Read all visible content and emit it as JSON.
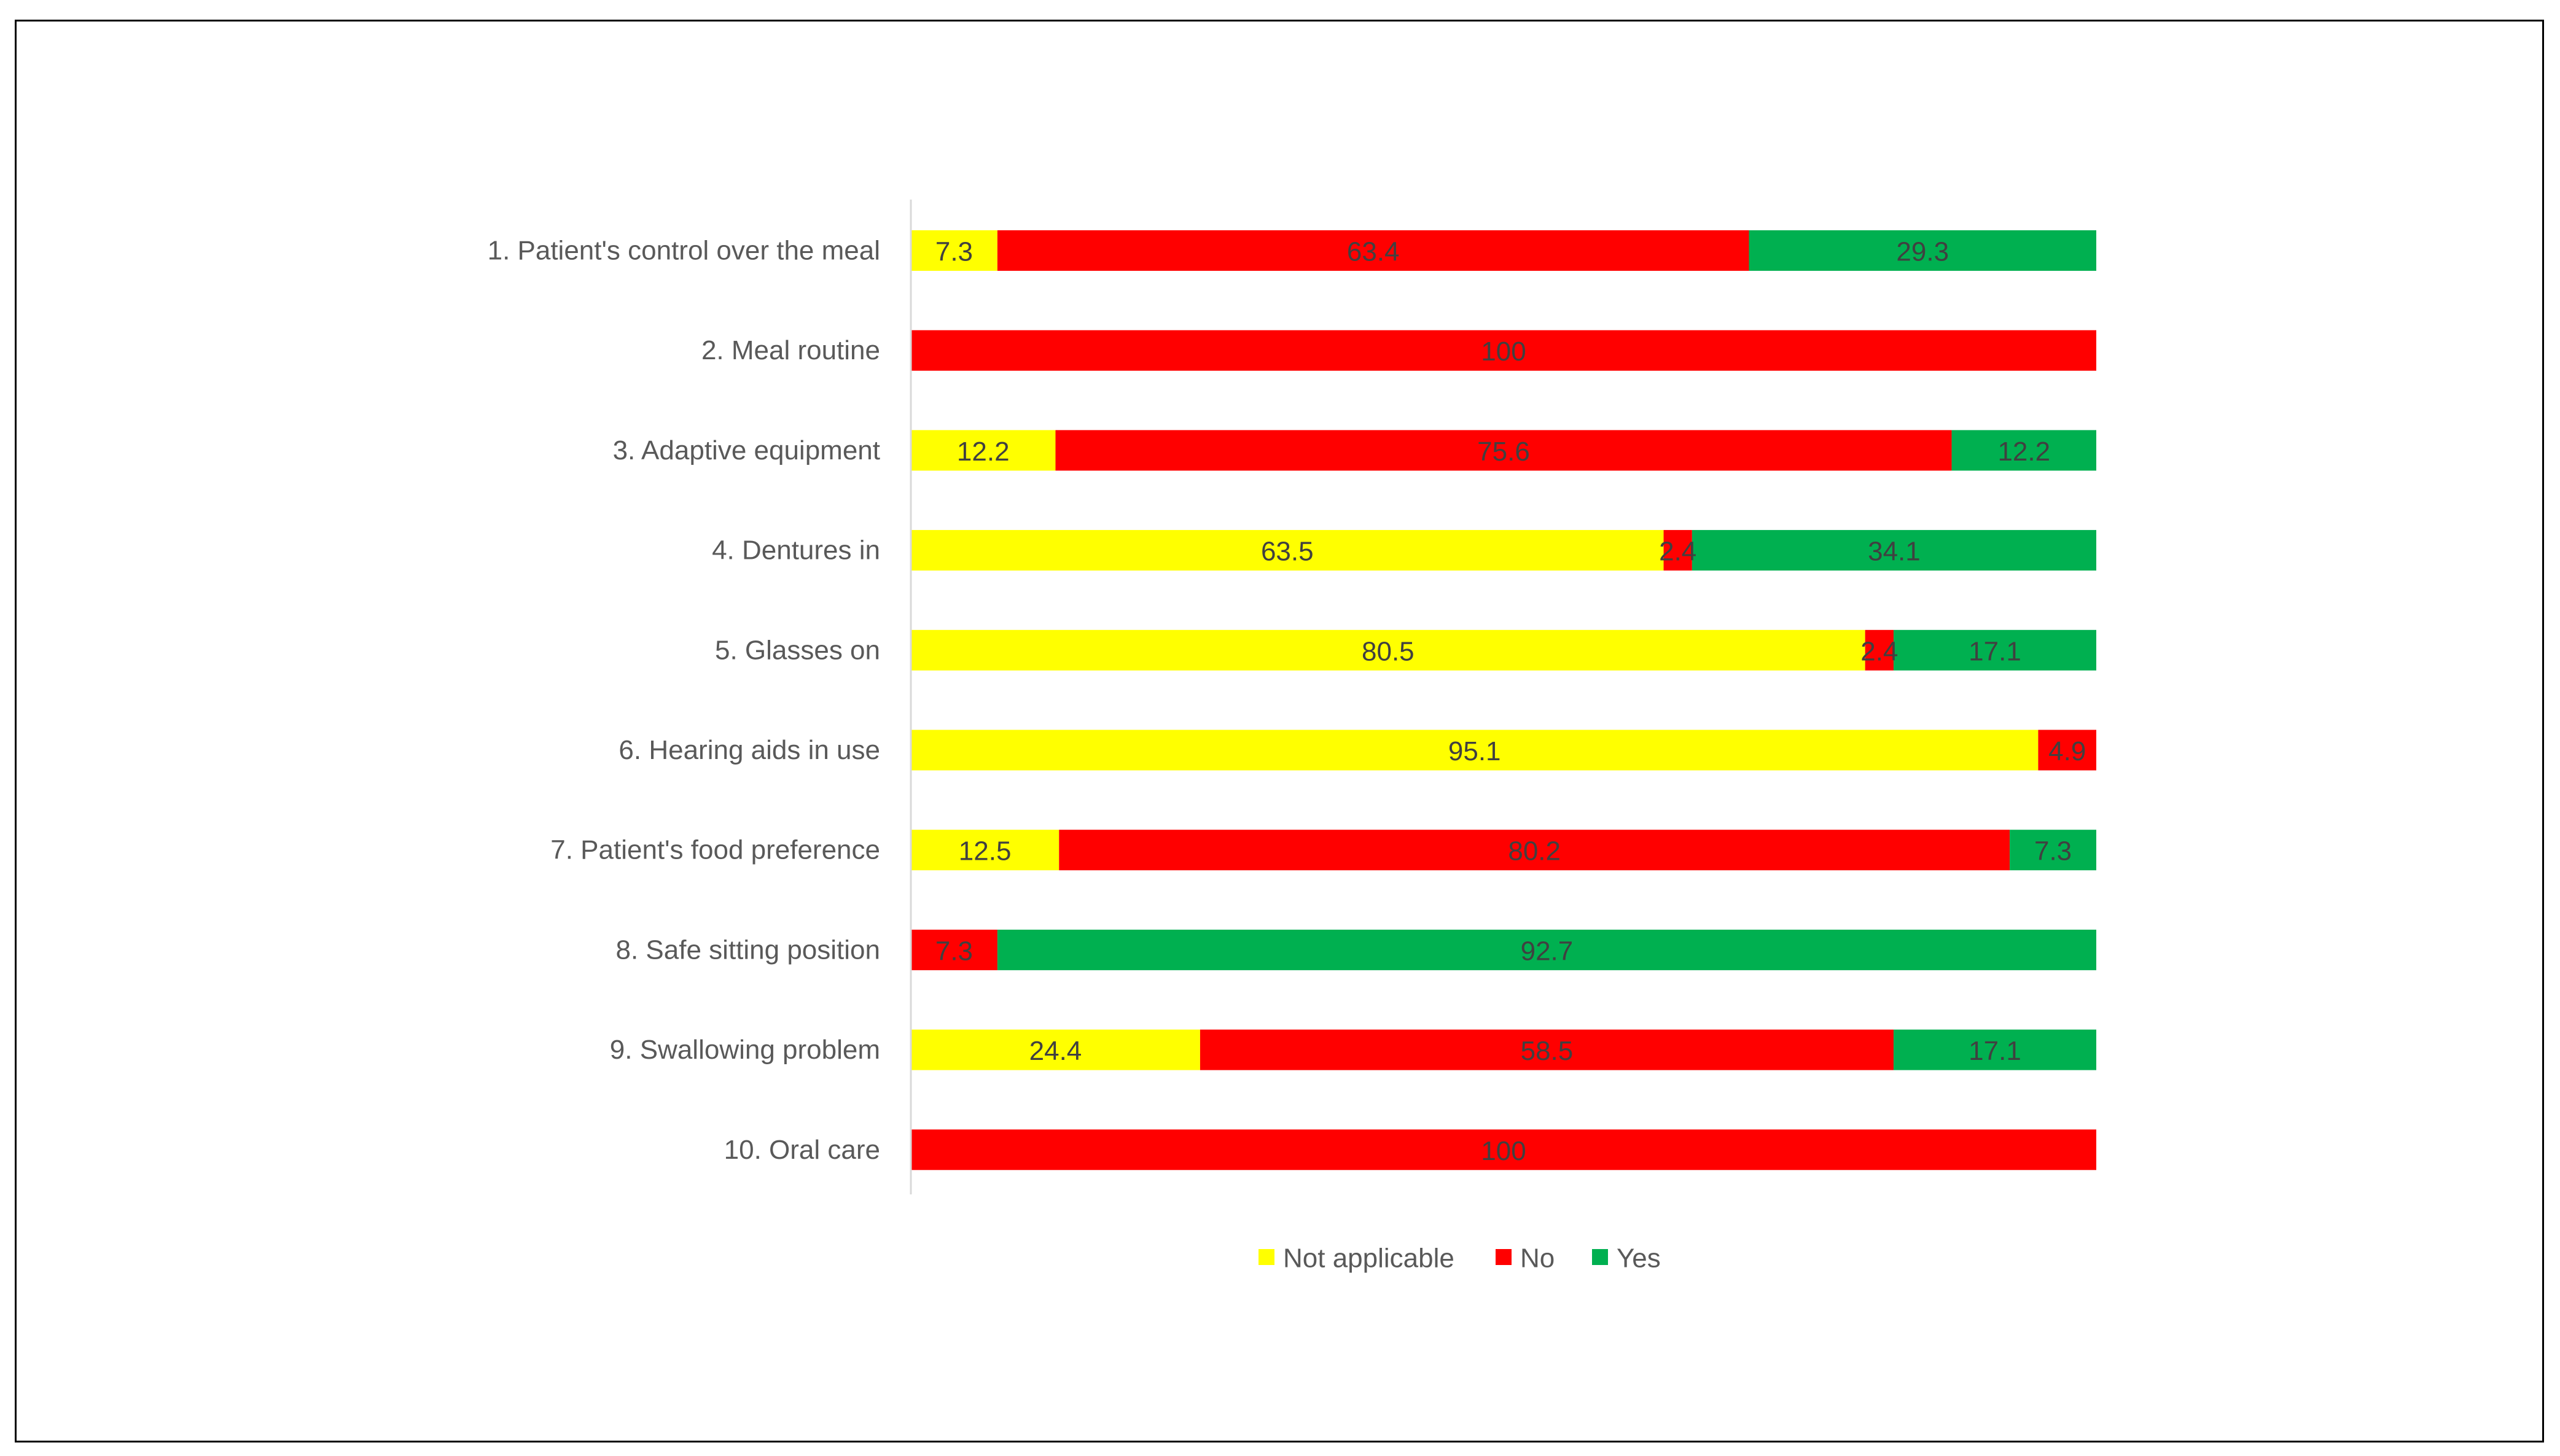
{
  "chart_data": {
    "type": "bar",
    "orientation": "horizontal",
    "stacked": true,
    "categories": [
      "1. Patient's control over the meal",
      "2. Meal routine",
      "3. Adaptive equipment",
      "4. Dentures in",
      "5. Glasses on",
      "6. Hearing aids in use",
      "7. Patient's food preference",
      "8. Safe sitting position",
      "9. Swallowing problem",
      "10. Oral care"
    ],
    "series": [
      {
        "name": "Not applicable",
        "color": "#ffff00",
        "values": [
          7.3,
          null,
          12.2,
          63.5,
          80.5,
          95.1,
          12.5,
          null,
          24.4,
          null
        ]
      },
      {
        "name": "No",
        "color": "#ff0000",
        "values": [
          63.4,
          100,
          75.6,
          2.4,
          2.4,
          4.9,
          80.2,
          7.3,
          58.5,
          100
        ]
      },
      {
        "name": "Yes",
        "color": "#00b050",
        "values": [
          29.3,
          null,
          12.2,
          34.1,
          17.1,
          null,
          7.3,
          92.7,
          17.1,
          null
        ]
      }
    ],
    "xlim": [
      0,
      100
    ],
    "grid": false,
    "legend_position": "bottom"
  }
}
